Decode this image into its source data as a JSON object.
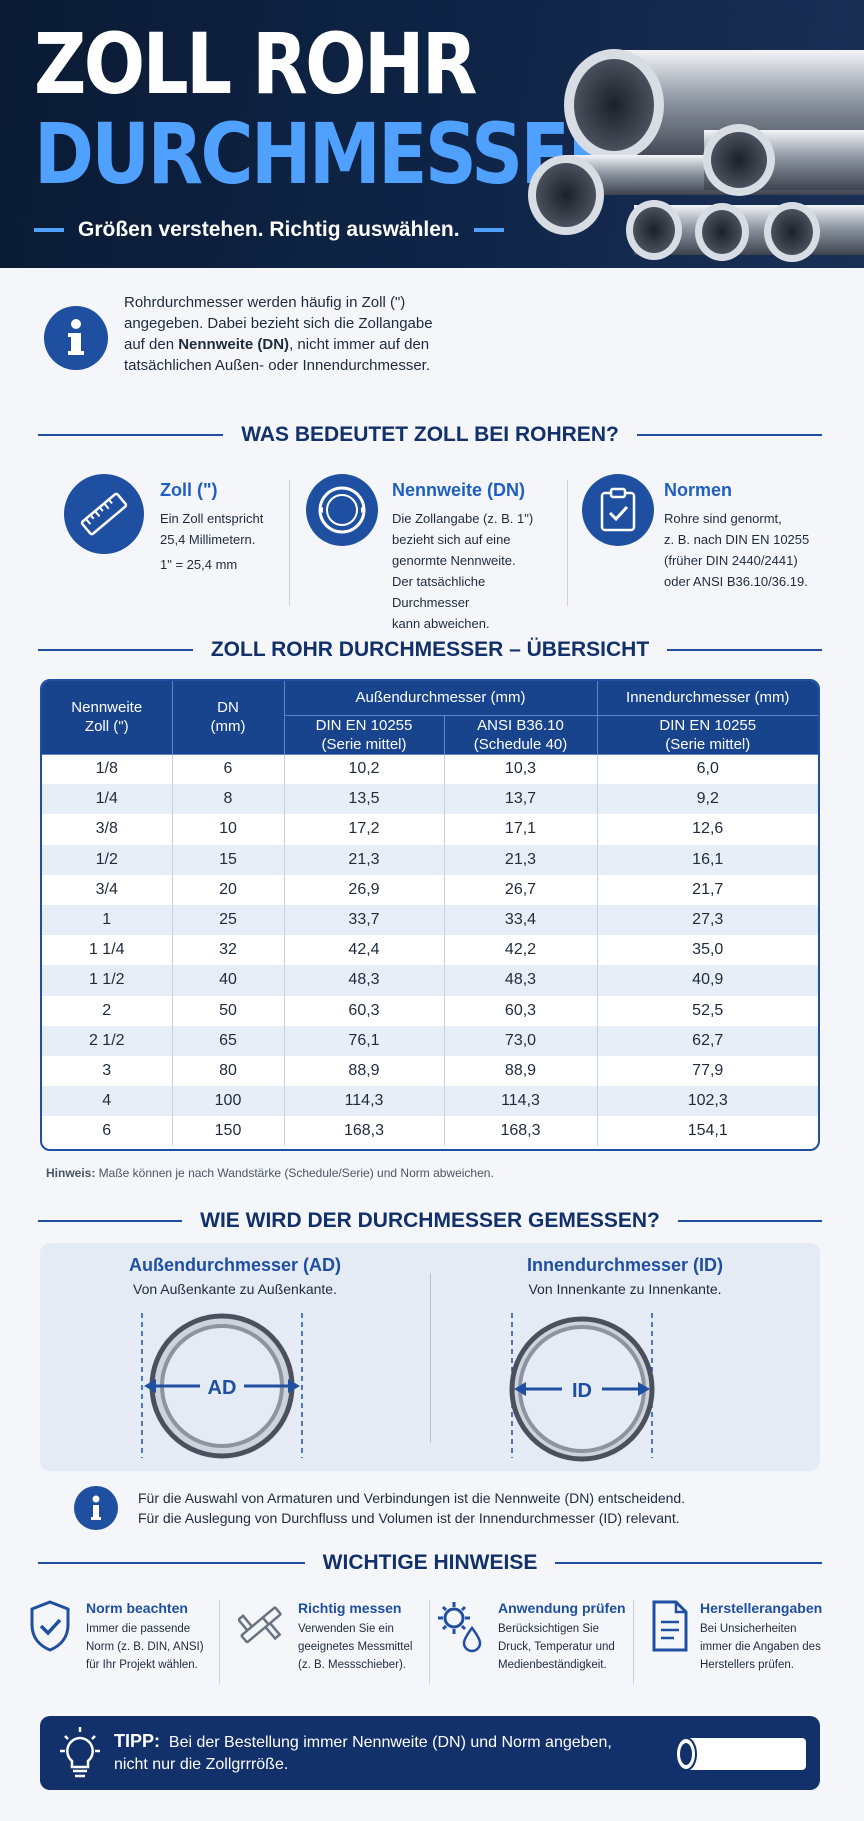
{
  "header": {
    "title_line1": "ZOLL ROHR",
    "title_line2": "DURCHMESSER",
    "subtitle": "Größen verstehen. Richtig auswählen."
  },
  "intro": {
    "text_before": "Rohrdurchmesser werden häufig in Zoll (\") angegeben. Dabei bezieht sich die Zollangabe auf den ",
    "text_bold": "Nennweite (DN)",
    "text_after": ", nicht immer auf den tatsächlichen Außen- oder Innendurchmesser."
  },
  "section1": {
    "heading": "WAS BEDEUTET ZOLL BEI ROHREN?",
    "items": [
      {
        "icon": "ruler-icon",
        "title": "Zoll (\")",
        "line1": "Ein Zoll entspricht",
        "line2": "25,4 Millimetern.",
        "line3": "1\" = 25,4 mm"
      },
      {
        "icon": "pipe-ring-icon",
        "title": "Nennweite (DN)",
        "line1": "Die Zollangabe (z. B. 1\")",
        "line2": "bezieht sich auf eine",
        "line3": "genormte Nennweite.",
        "line4": "Der tatsächliche Durchmesser",
        "line5": "kann abweichen."
      },
      {
        "icon": "clipboard-check-icon",
        "title": "Normen",
        "line1": "Rohre sind genormt,",
        "line2": "z. B. nach DIN EN 10255",
        "line3": "(früher DIN 2440/2441)",
        "line4": "oder ANSI B36.10/36.19."
      }
    ]
  },
  "section2": {
    "heading": "ZOLL ROHR DURCHMESSER – ÜBERSICHT",
    "header_nennweite_1": "Nennweite",
    "header_nennweite_2": "Zoll (\")",
    "header_dn_1": "DN",
    "header_dn_2": "(mm)",
    "header_aussen": "Außendurchmesser (mm)",
    "header_innen": "Innendurchmesser (mm)",
    "sub_din_1": "DIN EN 10255",
    "sub_din_2": "(Serie mittel)",
    "sub_ansi_1": "ANSI B36.10",
    "sub_ansi_2": "(Schedule 40)",
    "sub_din_inner_1": "DIN EN 10255",
    "sub_din_inner_2": "(Serie mittel)",
    "rows": [
      [
        "1/8",
        "6",
        "10,2",
        "10,3",
        "6,0"
      ],
      [
        "1/4",
        "8",
        "13,5",
        "13,7",
        "9,2"
      ],
      [
        "3/8",
        "10",
        "17,2",
        "17,1",
        "12,6"
      ],
      [
        "1/2",
        "15",
        "21,3",
        "21,3",
        "16,1"
      ],
      [
        "3/4",
        "20",
        "26,9",
        "26,7",
        "21,7"
      ],
      [
        "1",
        "25",
        "33,7",
        "33,4",
        "27,3"
      ],
      [
        "1 1/4",
        "32",
        "42,4",
        "42,2",
        "35,0"
      ],
      [
        "1 1/2",
        "40",
        "48,3",
        "48,3",
        "40,9"
      ],
      [
        "2",
        "50",
        "60,3",
        "60,3",
        "52,5"
      ],
      [
        "2 1/2",
        "65",
        "76,1",
        "73,0",
        "62,7"
      ],
      [
        "3",
        "80",
        "88,9",
        "88,9",
        "77,9"
      ],
      [
        "4",
        "100",
        "114,3",
        "114,3",
        "102,3"
      ],
      [
        "6",
        "150",
        "168,3",
        "168,3",
        "154,1"
      ]
    ],
    "note_label": "Hinweis:",
    "note_text": " Maße können je nach Wandstärke (Schedule/Serie) und Norm abweichen."
  },
  "section3": {
    "heading": "WIE WIRD DER DURCHMESSER GEMESSEN?",
    "ad_title": "Außendurchmesser (AD)",
    "ad_sub": "Von Außenkante zu Außenkante.",
    "ad_label": "AD",
    "id_title": "Innendurchmesser (ID)",
    "id_sub": "Von Innenkante zu Innenkante.",
    "id_label": "ID",
    "hint_line1": "Für die Auswahl von Armaturen und Verbindungen ist die Nennweite (DN) entscheidend.",
    "hint_line2": "Für die Auslegung von Durchfluss und Volumen ist der Innendurchmesser (ID) relevant."
  },
  "section4": {
    "heading": "WICHTIGE HINWEISE",
    "items": [
      {
        "icon": "shield-check-icon",
        "title": "Norm beachten",
        "l1": "Immer die passende",
        "l2": "Norm (z. B. DIN, ANSI)",
        "l3": "für Ihr Projekt wählen."
      },
      {
        "icon": "caliper-icon",
        "title": "Richtig messen",
        "l1": "Verwenden Sie ein",
        "l2": "geeignetes Messmittel",
        "l3": "(z. B. Messschieber)."
      },
      {
        "icon": "gear-drop-icon",
        "title": "Anwendung prüfen",
        "l1": "Berücksichtigen Sie",
        "l2": "Druck, Temperatur und",
        "l3": "Medienbeständigkeit."
      },
      {
        "icon": "document-icon",
        "title": "Herstellerangaben",
        "l1": "Bei Unsicherheiten",
        "l2": "immer die Angaben des",
        "l3": "Herstellers prüfen."
      }
    ]
  },
  "tipp": {
    "label": "TIPP:",
    "text_line1": "Bei der Bestellung immer Nennweite (DN) und Norm angeben,",
    "text_line2": "nicht nur die Zollgrrröße."
  },
  "colors": {
    "navy": "#0f2548",
    "accent_blue": "#4fa0ff",
    "brand_blue": "#1f4fa0"
  }
}
